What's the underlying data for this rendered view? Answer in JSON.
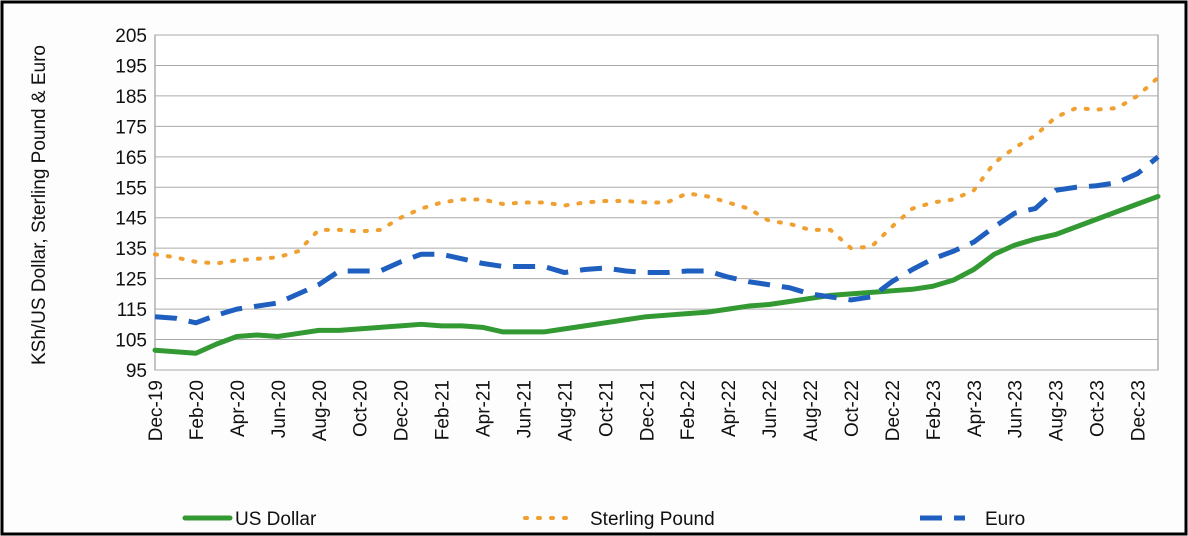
{
  "chart_data": {
    "type": "line",
    "y_label": "KSh/US Dollar, Sterling Pound & Euro",
    "categories": [
      "Dec-19",
      null,
      "Feb-20",
      null,
      "Apr-20",
      null,
      "Jun-20",
      null,
      "Aug-20",
      null,
      "Oct-20",
      null,
      "Dec-20",
      null,
      "Feb-21",
      null,
      "Apr-21",
      null,
      "Jun-21",
      null,
      "Aug-21",
      null,
      "Oct-21",
      null,
      "Dec-21",
      null,
      "Feb-22",
      null,
      "Apr-22",
      null,
      "Jun-22",
      null,
      "Aug-22",
      null,
      "Oct-22",
      null,
      "Dec-22",
      null,
      "Feb-23",
      null,
      "Apr-23",
      null,
      "Jun-23",
      null,
      "Aug-23",
      null,
      "Oct-23",
      null,
      "Dec-23",
      null
    ],
    "series": [
      {
        "name": "US Dollar",
        "color": "#339933",
        "style": "solid",
        "values": [
          101.5,
          101,
          100.5,
          103.5,
          106,
          106.5,
          106,
          107,
          108,
          108,
          108.5,
          109,
          109.5,
          110,
          109.5,
          109.5,
          109,
          107.5,
          107.5,
          107.5,
          108.5,
          109.5,
          110.5,
          111.5,
          112.5,
          113,
          113.5,
          114,
          115,
          116,
          116.5,
          117.5,
          118.5,
          119.5,
          120,
          120.5,
          121,
          121.5,
          122.5,
          124.5,
          128,
          133,
          136,
          138,
          139.5,
          142,
          144.5,
          147,
          149.5,
          152
        ]
      },
      {
        "name": "Sterling Pound",
        "color": "#f0a030",
        "style": "dotted",
        "values": [
          133,
          132,
          130.5,
          130,
          131,
          131.5,
          132,
          134,
          141,
          141,
          140.5,
          141,
          145,
          148,
          150,
          151,
          151,
          149.5,
          150,
          150,
          149,
          150,
          150.5,
          150.5,
          150,
          150,
          153,
          152,
          150,
          148,
          144,
          143,
          141,
          141,
          135,
          135.5,
          142,
          148,
          150,
          151,
          154,
          163,
          168,
          172,
          178,
          181,
          180.5,
          181,
          185,
          191
        ]
      },
      {
        "name": "Euro",
        "color": "#1f5fbf",
        "style": "dashed",
        "values": [
          112.5,
          112,
          110.5,
          113,
          115,
          116,
          117,
          120,
          123,
          127.5,
          127.5,
          127.5,
          130.5,
          133,
          133,
          131.5,
          130,
          129,
          129,
          129,
          127,
          128,
          128.5,
          127.5,
          127,
          127,
          127.5,
          127.5,
          125.5,
          124,
          123,
          122,
          120,
          119,
          118,
          119,
          124,
          128,
          131.5,
          134,
          137,
          142,
          146.5,
          148,
          154,
          155,
          155.5,
          156.5,
          159.5,
          165
        ]
      }
    ],
    "ylim": [
      95,
      205
    ],
    "yticks": [
      95,
      105,
      115,
      125,
      135,
      145,
      155,
      165,
      175,
      185,
      195,
      205
    ],
    "grid": true
  }
}
